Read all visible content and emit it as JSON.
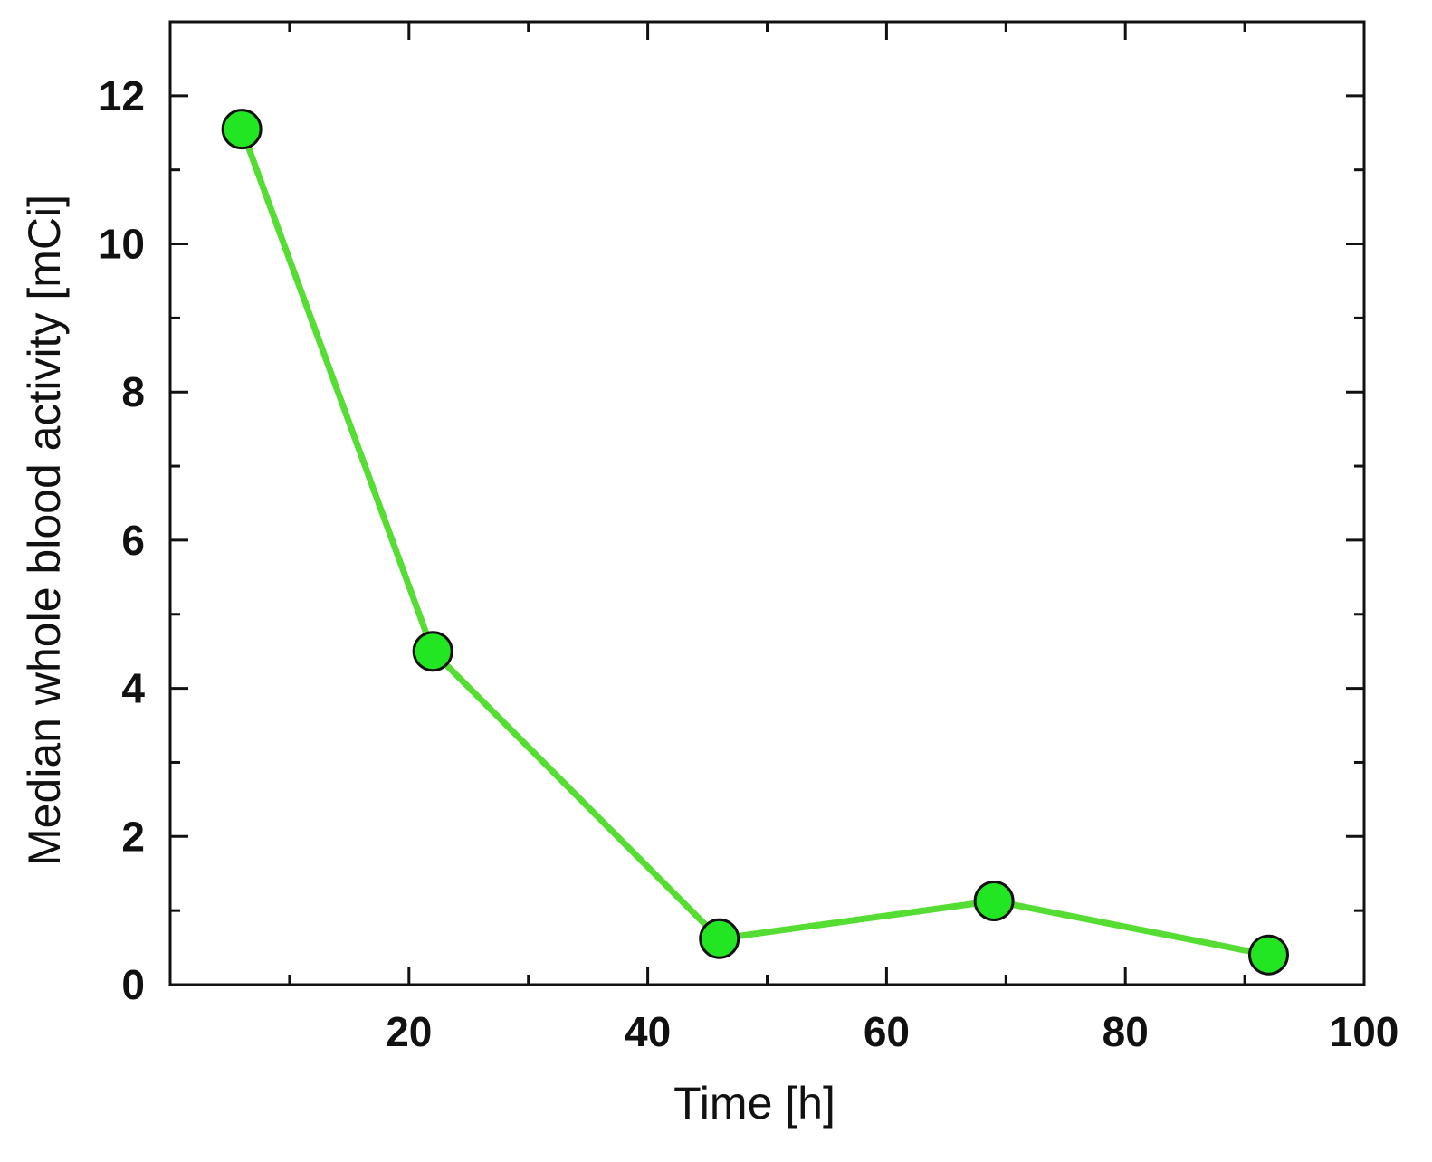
{
  "chart_data": {
    "type": "line",
    "title": "",
    "xlabel": "Time [h]",
    "ylabel": "Median whole blood activity [mCi]",
    "xlim": [
      0,
      100
    ],
    "ylim": [
      0,
      13
    ],
    "x_ticks": [
      20,
      40,
      60,
      80,
      100
    ],
    "x_tick_labels": [
      "20",
      "40",
      "60",
      "80",
      "100"
    ],
    "x_minor_ticks": [
      10,
      30,
      50,
      70,
      90
    ],
    "y_ticks": [
      0,
      2,
      4,
      6,
      8,
      10,
      12
    ],
    "y_tick_labels": [
      "0",
      "2",
      "4",
      "6",
      "8",
      "10",
      "12"
    ],
    "y_minor_ticks": [
      1,
      3,
      5,
      7,
      9,
      11
    ],
    "grid": false,
    "series": [
      {
        "x": [
          6,
          22,
          46,
          69,
          92
        ],
        "y": [
          11.55,
          4.5,
          0.62,
          1.13,
          0.4
        ],
        "line_color": "#55dd33",
        "marker_color": "#22e622",
        "marker_edge_color": "#111111"
      }
    ]
  }
}
